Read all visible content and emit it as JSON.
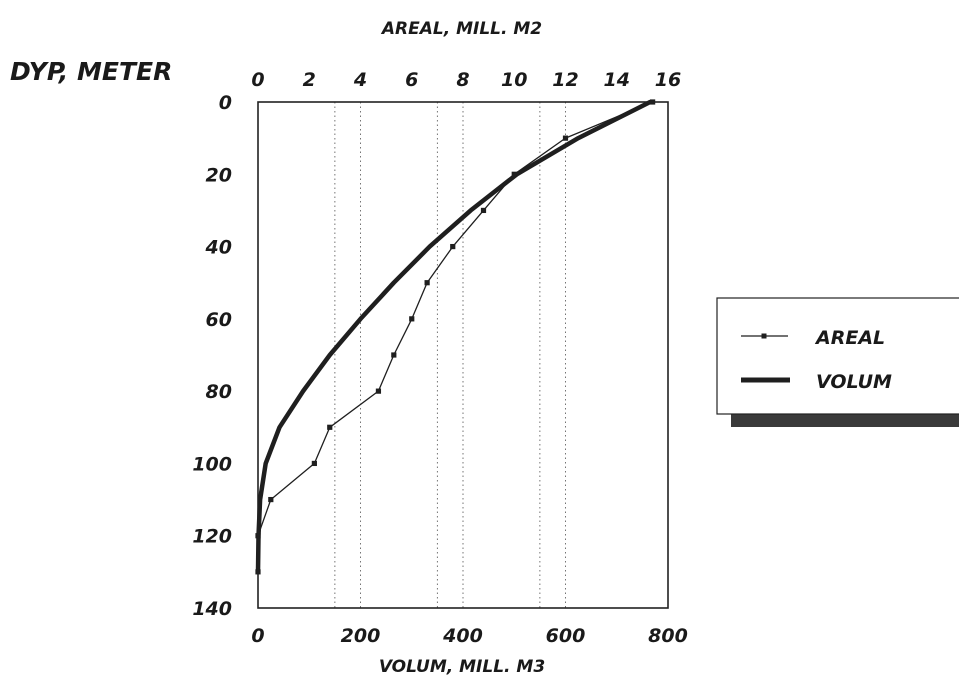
{
  "chart_data": {
    "type": "line",
    "top_axis_label": "AREAL, MILL. M2",
    "bottom_axis_label": "VOLUM, MILL. M3",
    "y_axis_label": "DYP, METER",
    "depth_axis": {
      "min": 0,
      "max": 140,
      "inverted": true,
      "ticks": [
        0,
        20,
        40,
        60,
        80,
        100,
        120,
        140
      ]
    },
    "volume_axis": {
      "min": 0,
      "max": 800,
      "ticks": [
        0,
        200,
        400,
        600,
        800
      ]
    },
    "area_axis": {
      "min": 0,
      "max": 16,
      "ticks": [
        0,
        2,
        4,
        6,
        8,
        10,
        12,
        14,
        16
      ]
    },
    "grid": {
      "vertical": true,
      "horizontal": false,
      "style": "dotted"
    },
    "legend_position": "right",
    "series": [
      {
        "name": "AREAL",
        "axis": "area",
        "style": "thin line with square markers",
        "points": [
          {
            "depth": 0,
            "value": 15.4
          },
          {
            "depth": 10,
            "value": 12.0
          },
          {
            "depth": 20,
            "value": 10.0
          },
          {
            "depth": 30,
            "value": 8.8
          },
          {
            "depth": 40,
            "value": 7.6
          },
          {
            "depth": 50,
            "value": 6.6
          },
          {
            "depth": 60,
            "value": 6.0
          },
          {
            "depth": 70,
            "value": 5.3
          },
          {
            "depth": 80,
            "value": 4.7
          },
          {
            "depth": 90,
            "value": 2.8
          },
          {
            "depth": 100,
            "value": 2.2
          },
          {
            "depth": 110,
            "value": 0.5
          },
          {
            "depth": 120,
            "value": 0.0
          },
          {
            "depth": 130,
            "value": 0.0
          }
        ]
      },
      {
        "name": "VOLUM",
        "axis": "volume",
        "style": "thick line",
        "points": [
          {
            "depth": 0,
            "value": 765
          },
          {
            "depth": 10,
            "value": 625
          },
          {
            "depth": 20,
            "value": 505
          },
          {
            "depth": 30,
            "value": 415
          },
          {
            "depth": 40,
            "value": 335
          },
          {
            "depth": 50,
            "value": 265
          },
          {
            "depth": 60,
            "value": 200
          },
          {
            "depth": 70,
            "value": 140
          },
          {
            "depth": 80,
            "value": 88
          },
          {
            "depth": 90,
            "value": 42
          },
          {
            "depth": 100,
            "value": 15
          },
          {
            "depth": 110,
            "value": 4
          },
          {
            "depth": 120,
            "value": 1
          },
          {
            "depth": 130,
            "value": 0
          }
        ]
      }
    ]
  },
  "colors": {
    "line": "#1f1f1f",
    "frame": "#222222",
    "grid": "#666666",
    "legend_shadow": "#3a3a3a"
  }
}
